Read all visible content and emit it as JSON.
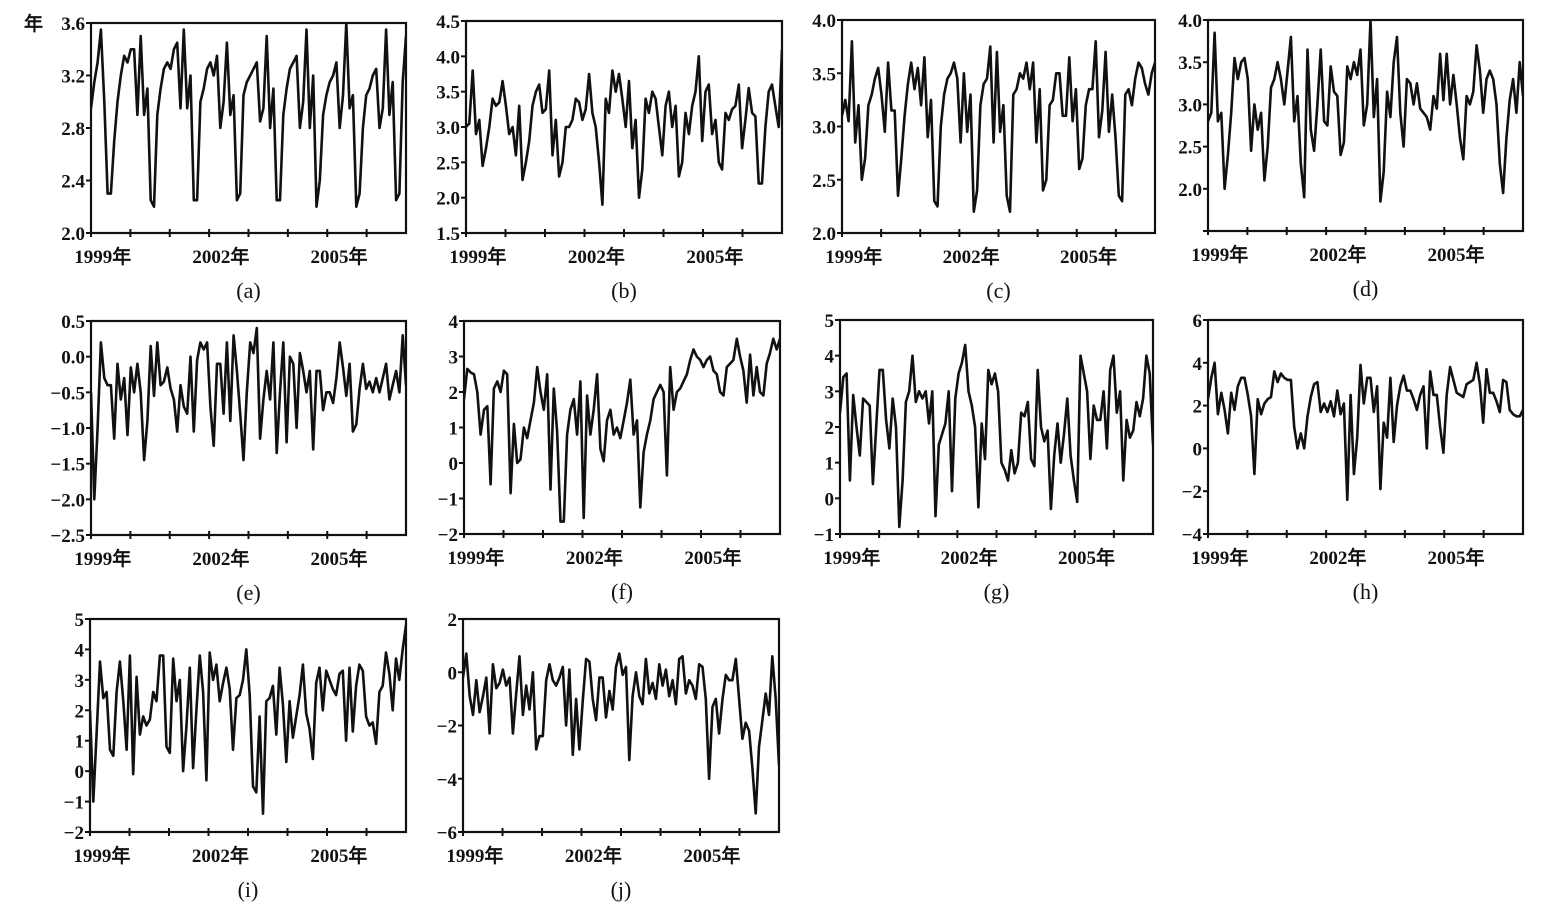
{
  "chart_data": [
    {
      "type": "line",
      "panel_label": "(a)",
      "y_unit_mark": "年",
      "ylim": [
        2.0,
        3.6
      ],
      "yticks": [
        2.0,
        2.4,
        2.8,
        3.2,
        3.6
      ],
      "ytick_labels": [
        "2.0",
        "2.4",
        "2.8",
        "3.2",
        "3.6"
      ],
      "values": [
        2.95,
        3.15,
        3.3,
        3.55,
        3.0,
        2.3,
        2.3,
        2.7,
        3.0,
        3.2,
        3.35,
        3.3,
        3.4,
        3.4,
        2.9,
        3.5,
        2.9,
        3.1,
        2.25,
        2.2,
        2.9,
        3.1,
        3.25,
        3.3,
        3.25,
        3.4,
        3.45,
        2.95,
        3.55,
        2.95,
        3.2,
        2.25,
        2.25,
        3.0,
        3.1,
        3.25,
        3.3,
        3.2,
        3.35,
        2.8,
        3.0,
        3.45,
        2.9,
        3.05,
        2.25,
        2.3,
        3.05,
        3.15,
        3.2,
        3.25,
        3.3,
        2.85,
        2.95,
        3.5,
        2.8,
        3.1,
        2.25,
        2.25,
        2.9,
        3.1,
        3.25,
        3.3,
        3.35,
        2.8,
        3.0,
        3.55,
        2.8,
        3.2,
        2.2,
        2.4,
        2.9,
        3.05,
        3.15,
        3.2,
        3.3,
        2.8,
        3.05,
        3.6,
        2.95,
        3.05,
        2.2,
        2.3,
        2.8,
        3.05,
        3.1,
        3.2,
        3.25,
        2.8,
        2.95,
        3.55,
        2.9,
        3.15,
        2.25,
        2.3,
        3.15,
        3.5
      ]
    },
    {
      "type": "line",
      "panel_label": "(b)",
      "ylim": [
        1.5,
        4.5
      ],
      "yticks": [
        1.5,
        2.0,
        2.5,
        3.0,
        3.5,
        4.0,
        4.5
      ],
      "ytick_labels": [
        "1.5",
        "2.0",
        "2.5",
        "3.0",
        "3.5",
        "4.0",
        "4.5"
      ],
      "values": [
        3.0,
        3.05,
        3.8,
        2.9,
        3.1,
        2.45,
        2.7,
        3.0,
        3.4,
        3.3,
        3.35,
        3.65,
        3.3,
        2.9,
        3.0,
        2.6,
        3.3,
        2.25,
        2.5,
        2.8,
        3.3,
        3.5,
        3.6,
        3.2,
        3.25,
        3.8,
        2.6,
        3.1,
        2.3,
        2.5,
        3.0,
        3.0,
        3.1,
        3.4,
        3.35,
        3.1,
        3.25,
        3.75,
        3.2,
        3.0,
        2.5,
        1.9,
        3.4,
        3.2,
        3.8,
        3.5,
        3.75,
        3.4,
        3.0,
        3.65,
        2.7,
        3.1,
        2.0,
        2.4,
        3.4,
        3.2,
        3.5,
        3.4,
        3.0,
        2.6,
        3.3,
        3.5,
        3.0,
        3.3,
        2.3,
        2.5,
        3.2,
        2.9,
        3.3,
        3.5,
        4.0,
        2.8,
        3.5,
        3.6,
        2.9,
        3.1,
        2.5,
        2.4,
        3.2,
        3.1,
        3.25,
        3.3,
        3.6,
        2.7,
        3.1,
        3.55,
        3.2,
        3.15,
        2.2,
        2.2,
        3.0,
        3.5,
        3.6,
        3.3,
        3.0,
        4.1
      ]
    },
    {
      "type": "line",
      "panel_label": "(c)",
      "ylim": [
        2.0,
        4.0
      ],
      "yticks": [
        2.0,
        2.5,
        3.0,
        3.5,
        4.0
      ],
      "ytick_labels": [
        "2.0",
        "2.5",
        "3.0",
        "3.5",
        "4.0"
      ],
      "values": [
        3.1,
        3.25,
        3.05,
        3.8,
        2.85,
        3.2,
        2.5,
        2.7,
        3.2,
        3.3,
        3.45,
        3.55,
        3.3,
        2.95,
        3.6,
        3.15,
        3.15,
        2.35,
        2.7,
        3.1,
        3.4,
        3.6,
        3.35,
        3.55,
        3.2,
        3.65,
        2.9,
        3.25,
        2.3,
        2.25,
        3.0,
        3.3,
        3.45,
        3.5,
        3.6,
        3.45,
        2.85,
        3.5,
        2.95,
        3.3,
        2.2,
        2.4,
        3.2,
        3.4,
        3.45,
        3.75,
        2.85,
        3.7,
        2.95,
        3.2,
        2.35,
        2.2,
        3.3,
        3.35,
        3.5,
        3.45,
        3.6,
        3.35,
        3.6,
        2.85,
        3.35,
        2.4,
        2.5,
        3.2,
        3.25,
        3.5,
        3.5,
        3.1,
        3.1,
        3.65,
        3.05,
        3.35,
        2.6,
        2.7,
        3.2,
        3.35,
        3.35,
        3.8,
        2.9,
        3.15,
        3.7,
        2.95,
        3.3,
        2.9,
        2.35,
        2.3,
        3.3,
        3.35,
        3.2,
        3.45,
        3.6,
        3.55,
        3.4,
        3.3,
        3.5,
        3.6
      ]
    },
    {
      "type": "line",
      "panel_label": "(d)",
      "ylim": [
        1.5,
        4.0
      ],
      "yticks": [
        1.5,
        2.0,
        2.5,
        3.0,
        3.5,
        4.0
      ],
      "ytick_labels": [
        "",
        "2.0",
        "2.5",
        "3.0",
        "3.5",
        "4.0"
      ],
      "values": [
        2.8,
        2.9,
        3.85,
        2.8,
        2.9,
        2.0,
        2.4,
        2.9,
        3.55,
        3.3,
        3.5,
        3.55,
        3.3,
        2.45,
        3.0,
        2.7,
        2.9,
        2.1,
        2.5,
        3.2,
        3.3,
        3.5,
        3.3,
        3.0,
        3.4,
        3.8,
        2.8,
        3.1,
        2.3,
        1.9,
        3.65,
        2.7,
        2.45,
        3.0,
        3.65,
        2.8,
        2.75,
        3.45,
        3.15,
        3.1,
        2.4,
        2.55,
        3.45,
        3.3,
        3.5,
        3.35,
        3.65,
        2.75,
        3.0,
        4.0,
        2.85,
        3.3,
        1.85,
        2.2,
        3.15,
        2.85,
        3.5,
        3.8,
        2.9,
        2.5,
        3.3,
        3.25,
        3.0,
        3.25,
        2.95,
        2.9,
        2.85,
        2.7,
        3.1,
        2.95,
        3.6,
        3.05,
        3.6,
        3.0,
        3.35,
        3.0,
        2.6,
        2.35,
        3.1,
        3.0,
        3.15,
        3.7,
        3.4,
        2.9,
        3.3,
        3.4,
        3.3,
        3.0,
        2.3,
        1.95,
        2.6,
        3.05,
        3.3,
        2.9,
        3.5,
        3.1
      ]
    },
    {
      "type": "line",
      "panel_label": "(e)",
      "ylim": [
        -2.5,
        0.5
      ],
      "yticks": [
        -2.5,
        -2.0,
        -1.5,
        -1.0,
        -0.5,
        0.0,
        0.5
      ],
      "ytick_labels": [
        "−2.5",
        "−2.0",
        "−1.5",
        "−1.0",
        "−0.5",
        "0.0",
        "0.5"
      ],
      "values": [
        -0.5,
        -2.0,
        -1.0,
        0.2,
        -0.3,
        -0.4,
        -0.4,
        -1.15,
        -0.1,
        -0.6,
        -0.3,
        -1.1,
        -0.15,
        -0.5,
        -0.1,
        -0.5,
        -1.45,
        -0.9,
        0.15,
        -0.55,
        0.2,
        -0.4,
        -0.35,
        -0.15,
        -0.45,
        -0.6,
        -1.05,
        -0.4,
        -0.7,
        -0.8,
        0.0,
        -1.05,
        -0.05,
        0.2,
        0.1,
        0.2,
        -0.7,
        -1.25,
        -0.1,
        -0.1,
        -0.8,
        0.2,
        -0.9,
        0.3,
        -0.2,
        -0.8,
        -1.45,
        -0.5,
        0.2,
        0.05,
        0.4,
        -1.15,
        -0.6,
        -0.2,
        -0.6,
        0.2,
        -1.35,
        -0.5,
        0.2,
        -1.2,
        0.0,
        -0.1,
        -1.0,
        0.05,
        -0.2,
        -0.5,
        -0.2,
        -1.3,
        -0.2,
        -0.2,
        -0.75,
        -0.5,
        -0.5,
        -0.65,
        -0.3,
        0.2,
        -0.15,
        -0.55,
        -0.1,
        -1.05,
        -0.95,
        -0.45,
        -0.1,
        -0.45,
        -0.35,
        -0.5,
        -0.3,
        -0.5,
        -0.3,
        -0.1,
        -0.6,
        -0.4,
        -0.2,
        -0.5,
        0.3,
        -0.4
      ]
    },
    {
      "type": "line",
      "panel_label": "(f)",
      "ylim": [
        -2,
        4
      ],
      "yticks": [
        -2,
        -1,
        0,
        1,
        2,
        3,
        4
      ],
      "ytick_labels": [
        "−2",
        "−1",
        "0",
        "1",
        "2",
        "3",
        "4"
      ],
      "values": [
        1.8,
        2.65,
        2.55,
        2.5,
        2.0,
        0.8,
        1.5,
        1.6,
        -0.6,
        2.1,
        2.3,
        2.0,
        2.6,
        2.5,
        -0.85,
        1.1,
        0.0,
        0.1,
        1.0,
        0.7,
        1.2,
        1.7,
        2.7,
        2.0,
        1.5,
        2.5,
        -0.75,
        2.1,
        0.9,
        -1.65,
        -1.65,
        0.8,
        1.5,
        1.8,
        0.8,
        2.3,
        -1.55,
        1.9,
        0.8,
        1.5,
        2.5,
        0.4,
        0.05,
        1.2,
        1.5,
        0.8,
        1.0,
        0.7,
        1.2,
        1.7,
        2.35,
        0.8,
        1.2,
        -1.25,
        0.3,
        0.8,
        1.2,
        1.8,
        2.0,
        2.2,
        2.0,
        -0.35,
        2.7,
        1.5,
        2.0,
        2.1,
        2.3,
        2.5,
        2.9,
        3.2,
        3.0,
        2.9,
        2.7,
        2.9,
        3.0,
        2.6,
        2.5,
        2.0,
        1.9,
        2.7,
        2.8,
        2.9,
        3.5,
        3.0,
        2.6,
        1.7,
        3.05,
        1.9,
        2.7,
        2.0,
        1.9,
        2.8,
        3.1,
        3.5,
        3.2,
        3.5
      ]
    },
    {
      "type": "line",
      "panel_label": "(g)",
      "ylim": [
        -1,
        5
      ],
      "yticks": [
        -1,
        0,
        1,
        2,
        3,
        4,
        5
      ],
      "ytick_labels": [
        "−1",
        "0",
        "1",
        "2",
        "3",
        "4",
        "5"
      ],
      "values": [
        2.4,
        3.4,
        3.5,
        0.5,
        2.9,
        2.0,
        1.2,
        2.8,
        2.7,
        2.6,
        0.4,
        2.0,
        3.6,
        3.6,
        2.2,
        1.4,
        2.8,
        2.0,
        -0.8,
        0.5,
        2.7,
        3.0,
        4.0,
        2.7,
        3.0,
        2.8,
        3.0,
        2.1,
        3.0,
        -0.5,
        1.5,
        1.8,
        2.1,
        3.0,
        0.2,
        2.8,
        3.5,
        3.8,
        4.3,
        3.0,
        2.6,
        2.0,
        -0.25,
        2.1,
        1.1,
        3.6,
        3.2,
        3.5,
        3.0,
        1.0,
        0.8,
        0.5,
        1.35,
        0.7,
        1.0,
        2.4,
        2.3,
        2.7,
        1.1,
        0.9,
        3.6,
        2.0,
        1.6,
        1.9,
        -0.3,
        1.2,
        2.1,
        1.0,
        1.8,
        2.8,
        1.2,
        0.5,
        -0.1,
        4.0,
        3.5,
        3.0,
        1.1,
        2.6,
        2.2,
        2.2,
        3.0,
        1.4,
        3.6,
        4.0,
        2.4,
        3.0,
        0.5,
        2.2,
        1.7,
        1.9,
        2.7,
        2.3,
        2.8,
        4.0,
        3.5,
        1.5
      ]
    },
    {
      "type": "line",
      "panel_label": "(h)",
      "ylim": [
        -4,
        6
      ],
      "yticks": [
        -4,
        -2,
        0,
        2,
        4,
        6
      ],
      "ytick_labels": [
        "−4",
        "−2",
        "0",
        "2",
        "4",
        "6"
      ],
      "values": [
        2.3,
        3.3,
        4.0,
        1.6,
        2.6,
        1.8,
        0.7,
        2.6,
        1.8,
        2.9,
        3.3,
        3.3,
        2.5,
        1.5,
        -1.2,
        2.3,
        1.6,
        2.1,
        2.3,
        2.4,
        3.6,
        3.1,
        3.5,
        3.3,
        3.2,
        3.2,
        1.0,
        0.0,
        0.7,
        0.0,
        1.5,
        2.4,
        3.0,
        3.1,
        1.7,
        2.1,
        1.7,
        2.2,
        1.5,
        2.7,
        1.6,
        2.1,
        -2.4,
        2.5,
        -1.2,
        0.5,
        3.9,
        2.1,
        3.3,
        3.3,
        1.7,
        2.9,
        -1.9,
        1.2,
        0.5,
        3.3,
        0.3,
        2.0,
        2.9,
        3.4,
        2.7,
        2.7,
        2.3,
        1.8,
        2.5,
        2.9,
        0.0,
        3.6,
        2.5,
        2.5,
        1.0,
        -0.2,
        2.5,
        3.8,
        3.2,
        2.6,
        2.5,
        2.4,
        3.0,
        3.1,
        3.2,
        4.0,
        3.0,
        1.2,
        3.7,
        2.6,
        2.6,
        2.2,
        1.7,
        3.2,
        3.1,
        1.8,
        1.6,
        1.5,
        1.5,
        1.8
      ]
    },
    {
      "type": "line",
      "panel_label": "(i)",
      "ylim": [
        -2,
        5
      ],
      "yticks": [
        -2,
        -1,
        0,
        1,
        2,
        3,
        4,
        5
      ],
      "ytick_labels": [
        "−2",
        "−1",
        "0",
        "1",
        "2",
        "3",
        "4",
        "5"
      ],
      "values": [
        2.0,
        -1.0,
        1.3,
        3.6,
        2.4,
        2.6,
        0.7,
        0.5,
        2.6,
        3.6,
        2.3,
        0.7,
        3.8,
        -0.1,
        3.1,
        1.2,
        1.8,
        1.5,
        1.7,
        2.6,
        2.3,
        3.8,
        3.8,
        0.8,
        0.6,
        3.7,
        2.3,
        3.0,
        0.0,
        1.5,
        3.4,
        0.1,
        2.0,
        3.8,
        2.6,
        -0.3,
        3.9,
        3.0,
        3.5,
        2.3,
        2.9,
        3.4,
        2.7,
        0.7,
        2.4,
        2.5,
        3.0,
        4.0,
        2.5,
        -0.5,
        -0.7,
        1.8,
        -1.4,
        2.3,
        2.4,
        2.8,
        1.2,
        3.4,
        2.2,
        0.3,
        2.3,
        1.1,
        1.8,
        2.5,
        3.5,
        1.9,
        1.4,
        0.4,
        2.9,
        3.4,
        2.0,
        3.3,
        3.0,
        2.7,
        2.5,
        3.2,
        3.3,
        1.0,
        3.4,
        1.3,
        2.8,
        3.5,
        3.3,
        1.8,
        1.5,
        1.6,
        0.9,
        2.6,
        2.8,
        3.9,
        3.2,
        2.0,
        3.7,
        3.0,
        4.0,
        4.8
      ]
    },
    {
      "type": "line",
      "panel_label": "(j)",
      "ylim": [
        -6,
        2
      ],
      "yticks": [
        -6,
        -4,
        -2,
        0,
        2
      ],
      "ytick_labels": [
        "−6",
        "−4",
        "−2",
        "0",
        "2"
      ],
      "values": [
        -0.2,
        0.7,
        -0.9,
        -1.6,
        -0.3,
        -1.5,
        -0.9,
        -0.2,
        -2.3,
        0.3,
        -0.6,
        -0.4,
        0.1,
        -0.5,
        -0.2,
        -2.3,
        -0.8,
        0.6,
        -1.6,
        -0.5,
        -1.4,
        0.0,
        -2.9,
        -2.4,
        -2.4,
        -0.3,
        0.3,
        -0.3,
        -0.5,
        -0.2,
        0.2,
        -2.0,
        0.1,
        -3.1,
        -1.0,
        -2.9,
        -1.1,
        0.5,
        0.4,
        -1.0,
        -1.8,
        -0.2,
        -0.2,
        -1.7,
        -0.7,
        -1.4,
        0.2,
        0.7,
        -0.1,
        0.2,
        -3.3,
        -0.9,
        0.0,
        -0.9,
        -1.2,
        0.5,
        -0.8,
        -0.4,
        -1.0,
        0.3,
        -0.5,
        0.1,
        -0.9,
        -0.3,
        -1.2,
        0.5,
        0.6,
        -0.8,
        -0.3,
        -0.5,
        -1.0,
        0.3,
        0.2,
        -1.0,
        -4.0,
        -1.3,
        -1.0,
        -2.3,
        -1.0,
        -0.1,
        -0.3,
        -0.3,
        0.5,
        -1.0,
        -2.5,
        -1.9,
        -2.2,
        -3.6,
        -5.3,
        -2.8,
        -1.8,
        -0.8,
        -1.6,
        0.6,
        -1.0,
        -3.5
      ]
    }
  ],
  "x_axis": {
    "period": [
      "1999-01",
      "2006-12"
    ],
    "frequency": "monthly",
    "xlim": [
      1999,
      2007
    ],
    "major_ticks": [
      1999,
      2000,
      2001,
      2002,
      2003,
      2004,
      2005,
      2006
    ],
    "labeled_ticks": [
      1999,
      2002,
      2005
    ],
    "tick_labels": [
      "1999年",
      "2002年",
      "2005年"
    ]
  },
  "style": {
    "line_color": "#111111",
    "background": "#ffffff"
  }
}
